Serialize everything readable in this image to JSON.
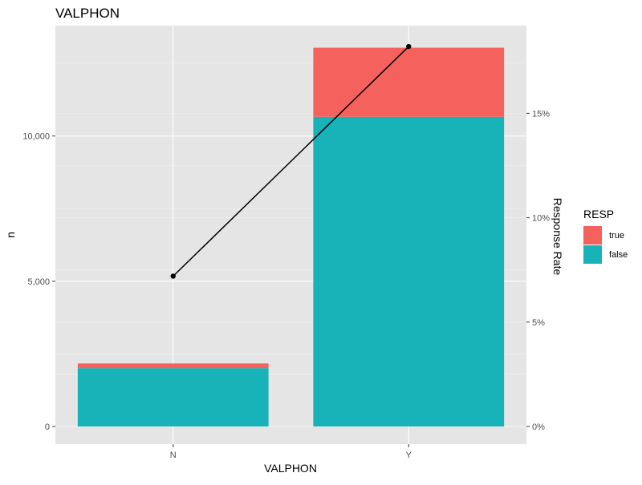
{
  "chart_data": {
    "type": "bar",
    "title": "VALPHON",
    "xlabel": "VALPHON",
    "ylabel": "n",
    "y2label": "Response Rate",
    "categories": [
      "N",
      "Y"
    ],
    "stacked": true,
    "series": [
      {
        "name": "false",
        "color": "#18b3b8",
        "values": [
          2010,
          10660
        ]
      },
      {
        "name": "true",
        "color": "#f5625d",
        "values": [
          160,
          2380
        ]
      }
    ],
    "line_series": {
      "name": "Response Rate",
      "axis": "secondary",
      "values": [
        7.2,
        18.2
      ]
    },
    "ylim": [
      0,
      13800
    ],
    "y_ticks": [
      0,
      5000,
      10000
    ],
    "y_tick_labels": [
      "0",
      "5,000",
      "10,000"
    ],
    "y2lim": [
      0,
      19.2
    ],
    "y2_ticks": [
      0,
      5,
      10,
      15
    ],
    "y2_tick_labels": [
      "0%",
      "5%",
      "10%",
      "15%"
    ],
    "legend": {
      "title": "RESP",
      "position": "right",
      "entries": [
        {
          "label": "true",
          "color": "#f5625d"
        },
        {
          "label": "false",
          "color": "#18b3b8"
        }
      ]
    },
    "grid": true
  }
}
